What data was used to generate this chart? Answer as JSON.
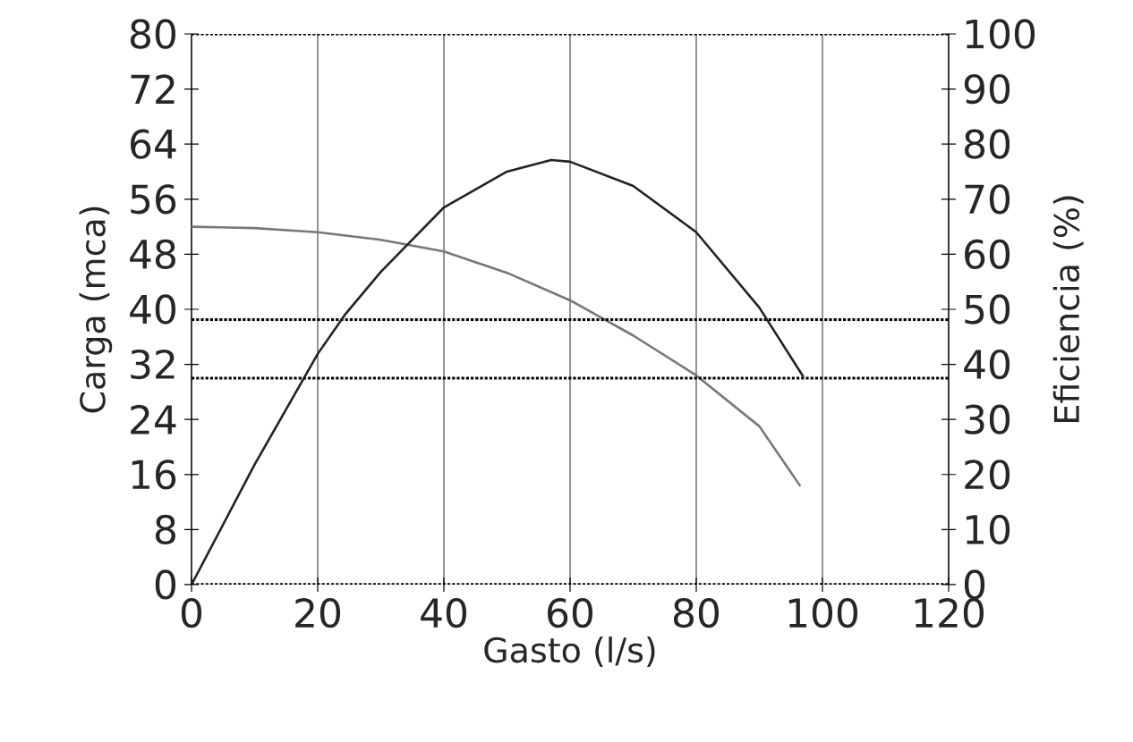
{
  "chart_data": {
    "type": "line",
    "xlabel": "Gasto (l/s)",
    "ylabel": "Carga (mca)",
    "y2label": "Eficiencia (%)",
    "xlim": [
      0,
      120
    ],
    "xticks": [
      0,
      20,
      40,
      60,
      80,
      100,
      120
    ],
    "ylim": [
      0,
      80
    ],
    "yticks": [
      0,
      8,
      16,
      24,
      32,
      40,
      48,
      56,
      64,
      72,
      80
    ],
    "y2lim": [
      0,
      100
    ],
    "y2ticks": [
      0,
      10,
      20,
      30,
      40,
      50,
      60,
      70,
      80,
      90,
      100
    ],
    "grid": "x",
    "marker": "none",
    "line_style": "solid",
    "ref_lines": [
      {
        "axis": "y",
        "value": 38.5,
        "line_style": "dotted"
      },
      {
        "axis": "y",
        "value": 30,
        "line_style": "dotted"
      }
    ],
    "series": [
      {
        "color": "#777777",
        "x": [
          0,
          10,
          20,
          30,
          40,
          50,
          60,
          70,
          80,
          90,
          96.5
        ],
        "values": [
          52,
          51.8,
          51.2,
          50.1,
          48.4,
          45.3,
          41.3,
          36.2,
          30.4,
          23,
          14.3
        ]
      },
      {
        "color": "#222222",
        "axis": "y2",
        "x": [
          0,
          10,
          20,
          24.3,
          30,
          40,
          50,
          57,
          60,
          70,
          80,
          90,
          97
        ],
        "values": [
          0,
          21.8,
          41.9,
          49,
          56.8,
          68.5,
          75,
          77.1,
          76.8,
          72.4,
          64,
          50.3,
          37.7
        ]
      }
    ]
  }
}
